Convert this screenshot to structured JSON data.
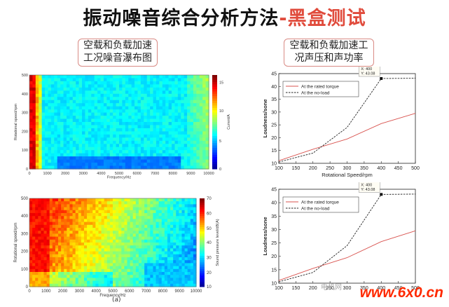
{
  "title": {
    "main": "振动噪音综合分析方法",
    "sep": "-",
    "accent": "黑盒测试"
  },
  "left_label": {
    "line1": "空载和负载加速",
    "line2": "工况噪音瀑布图"
  },
  "right_label": {
    "line1": "空载和负载加速工",
    "line2": "况声压和声功率"
  },
  "caption": "(a)",
  "watermark": "www.6x0.cn",
  "watermark_cn": "电机网",
  "colors": {
    "rated": "#d9534f",
    "noload": "#222222",
    "accent": "#e04b3c"
  },
  "chart_data": [
    {
      "type": "heatmap",
      "xlabel": "Frequency/Hz",
      "ylabel": "Rotational speed/rpm",
      "colorbar_label": "Current/A",
      "x_ticks": [
        "0",
        "1000",
        "2000",
        "3000",
        "4000",
        "5000",
        "6000",
        "7000",
        "8000",
        "9000",
        "10000"
      ],
      "y_ticks": [
        "0",
        "100",
        "200",
        "300",
        "400",
        "500"
      ],
      "colorbar_ticks": [
        "0",
        "5",
        "10",
        "15"
      ]
    },
    {
      "type": "line",
      "xlabel": "Rotational Speed/rpm",
      "ylabel": "Loudness/sone",
      "x_ticks": [
        "100",
        "150",
        "200",
        "250",
        "300",
        "350",
        "400",
        "450",
        "500"
      ],
      "y_ticks": [
        "10",
        "15",
        "20",
        "25",
        "30",
        "35",
        "40",
        "45"
      ],
      "xlim": [
        100,
        500
      ],
      "ylim": [
        10,
        45
      ],
      "legend": [
        "At the rated torque",
        "At the no-load"
      ],
      "tooltip": {
        "x": "X: 400",
        "y": "Y: 43.08"
      },
      "series": [
        {
          "name": "At the rated torque",
          "x": [
            100,
            200,
            300,
            400,
            500
          ],
          "values": [
            11,
            15.5,
            19.5,
            25.5,
            29.5
          ]
        },
        {
          "name": "At the no-load",
          "x": [
            100,
            200,
            300,
            400,
            500
          ],
          "values": [
            10.5,
            14,
            24,
            43.08,
            43.2
          ]
        }
      ]
    },
    {
      "type": "heatmap",
      "xlabel": "Frequency/Hz",
      "ylabel": "Rotational speed/rpm",
      "colorbar_label": "Sound pressure level/dB(A)",
      "x_ticks": [
        "0",
        "1000",
        "2000",
        "3000",
        "4000",
        "5000",
        "6000",
        "7000",
        "8000",
        "9000",
        "10000"
      ],
      "y_ticks": [
        "0",
        "100",
        "200",
        "300",
        "400",
        "500"
      ],
      "colorbar_ticks": [
        "10",
        "20",
        "30",
        "40",
        "50",
        "60",
        "70"
      ]
    },
    {
      "type": "line",
      "xlabel": "",
      "ylabel": "Loudness/sone",
      "x_ticks": [
        "100",
        "150",
        "200",
        "250",
        "300",
        "350",
        "400",
        "450",
        "500"
      ],
      "y_ticks": [
        "10",
        "15",
        "20",
        "25",
        "30",
        "35",
        "40",
        "45"
      ],
      "xlim": [
        100,
        500
      ],
      "ylim": [
        10,
        45
      ],
      "legend": [
        "At the rated torque",
        "At the no-load"
      ],
      "tooltip": {
        "x": "X: 400",
        "y": "Y: 43.08"
      },
      "series": [
        {
          "name": "At the rated torque",
          "x": [
            100,
            200,
            300,
            400,
            500
          ],
          "values": [
            11,
            15.5,
            19.5,
            25.5,
            29.5
          ]
        },
        {
          "name": "At the no-load",
          "x": [
            100,
            200,
            300,
            400,
            500
          ],
          "values": [
            10.5,
            14,
            24,
            43.08,
            43.2
          ]
        }
      ]
    }
  ]
}
